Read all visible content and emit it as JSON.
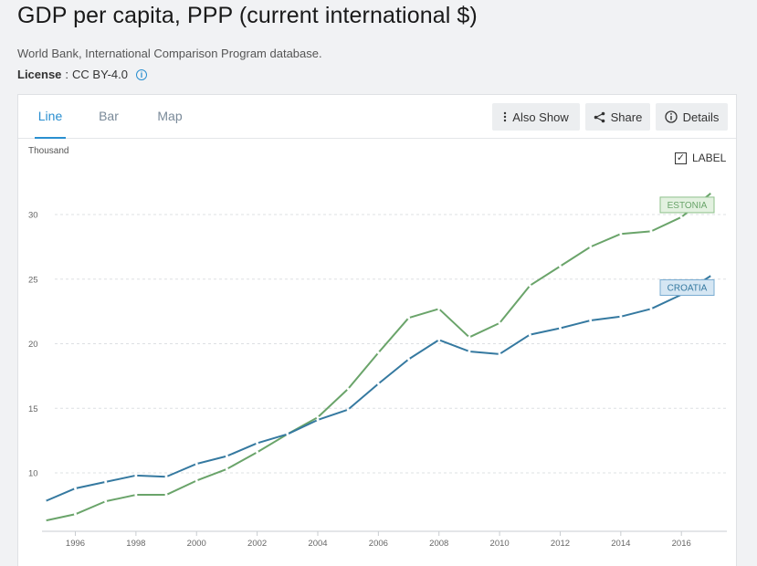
{
  "header": {
    "title": "GDP per capita, PPP (current international $)",
    "source": "World Bank, International Comparison Program database.",
    "license_label": "License",
    "license_sep": ":",
    "license_value": "CC BY-4.0",
    "info_icon": "info-icon"
  },
  "tabs": [
    {
      "label": "Line",
      "active": true
    },
    {
      "label": "Bar",
      "active": false
    },
    {
      "label": "Map",
      "active": false
    }
  ],
  "toolbar": {
    "also_show": "Also Show",
    "share": "Share",
    "details": "Details",
    "also_show_icon": "vertical-dots-icon",
    "share_icon": "share-icon",
    "details_icon": "info-icon"
  },
  "label_toggle": {
    "label": "LABEL",
    "checked": true
  },
  "chart_data": {
    "type": "line",
    "unit_label": "Thousand",
    "x": [
      1995,
      1996,
      1997,
      1998,
      1999,
      2000,
      2001,
      2002,
      2003,
      2004,
      2005,
      2006,
      2007,
      2008,
      2009,
      2010,
      2011,
      2012,
      2013,
      2014,
      2015,
      2016,
      2017
    ],
    "x_ticks": [
      "1996",
      "1998",
      "2000",
      "2002",
      "2004",
      "2006",
      "2008",
      "2010",
      "2012",
      "2014",
      "2016"
    ],
    "y_ticks": [
      "10",
      "15",
      "20",
      "25",
      "30"
    ],
    "ylim": [
      5.5,
      33
    ],
    "grid": true,
    "series": [
      {
        "name": "ESTONIA",
        "color": "#6aa46a",
        "label_bg": "#e3f1e0",
        "label_border": "#8cc08a",
        "values": [
          6.3,
          6.8,
          7.8,
          8.3,
          8.3,
          9.4,
          10.3,
          11.6,
          13.0,
          14.3,
          16.5,
          19.3,
          22.0,
          22.7,
          20.5,
          21.6,
          24.5,
          26.0,
          27.5,
          28.5,
          28.7,
          29.8,
          31.7
        ]
      },
      {
        "name": "CROATIA",
        "color": "#3579a0",
        "label_bg": "#d5e6f3",
        "label_border": "#79acd2",
        "values": [
          7.8,
          8.8,
          9.3,
          9.8,
          9.7,
          10.7,
          11.3,
          12.3,
          13.0,
          14.1,
          14.9,
          16.9,
          18.8,
          20.3,
          19.4,
          19.2,
          20.7,
          21.2,
          21.8,
          22.1,
          22.7,
          23.8,
          25.3
        ]
      }
    ]
  }
}
